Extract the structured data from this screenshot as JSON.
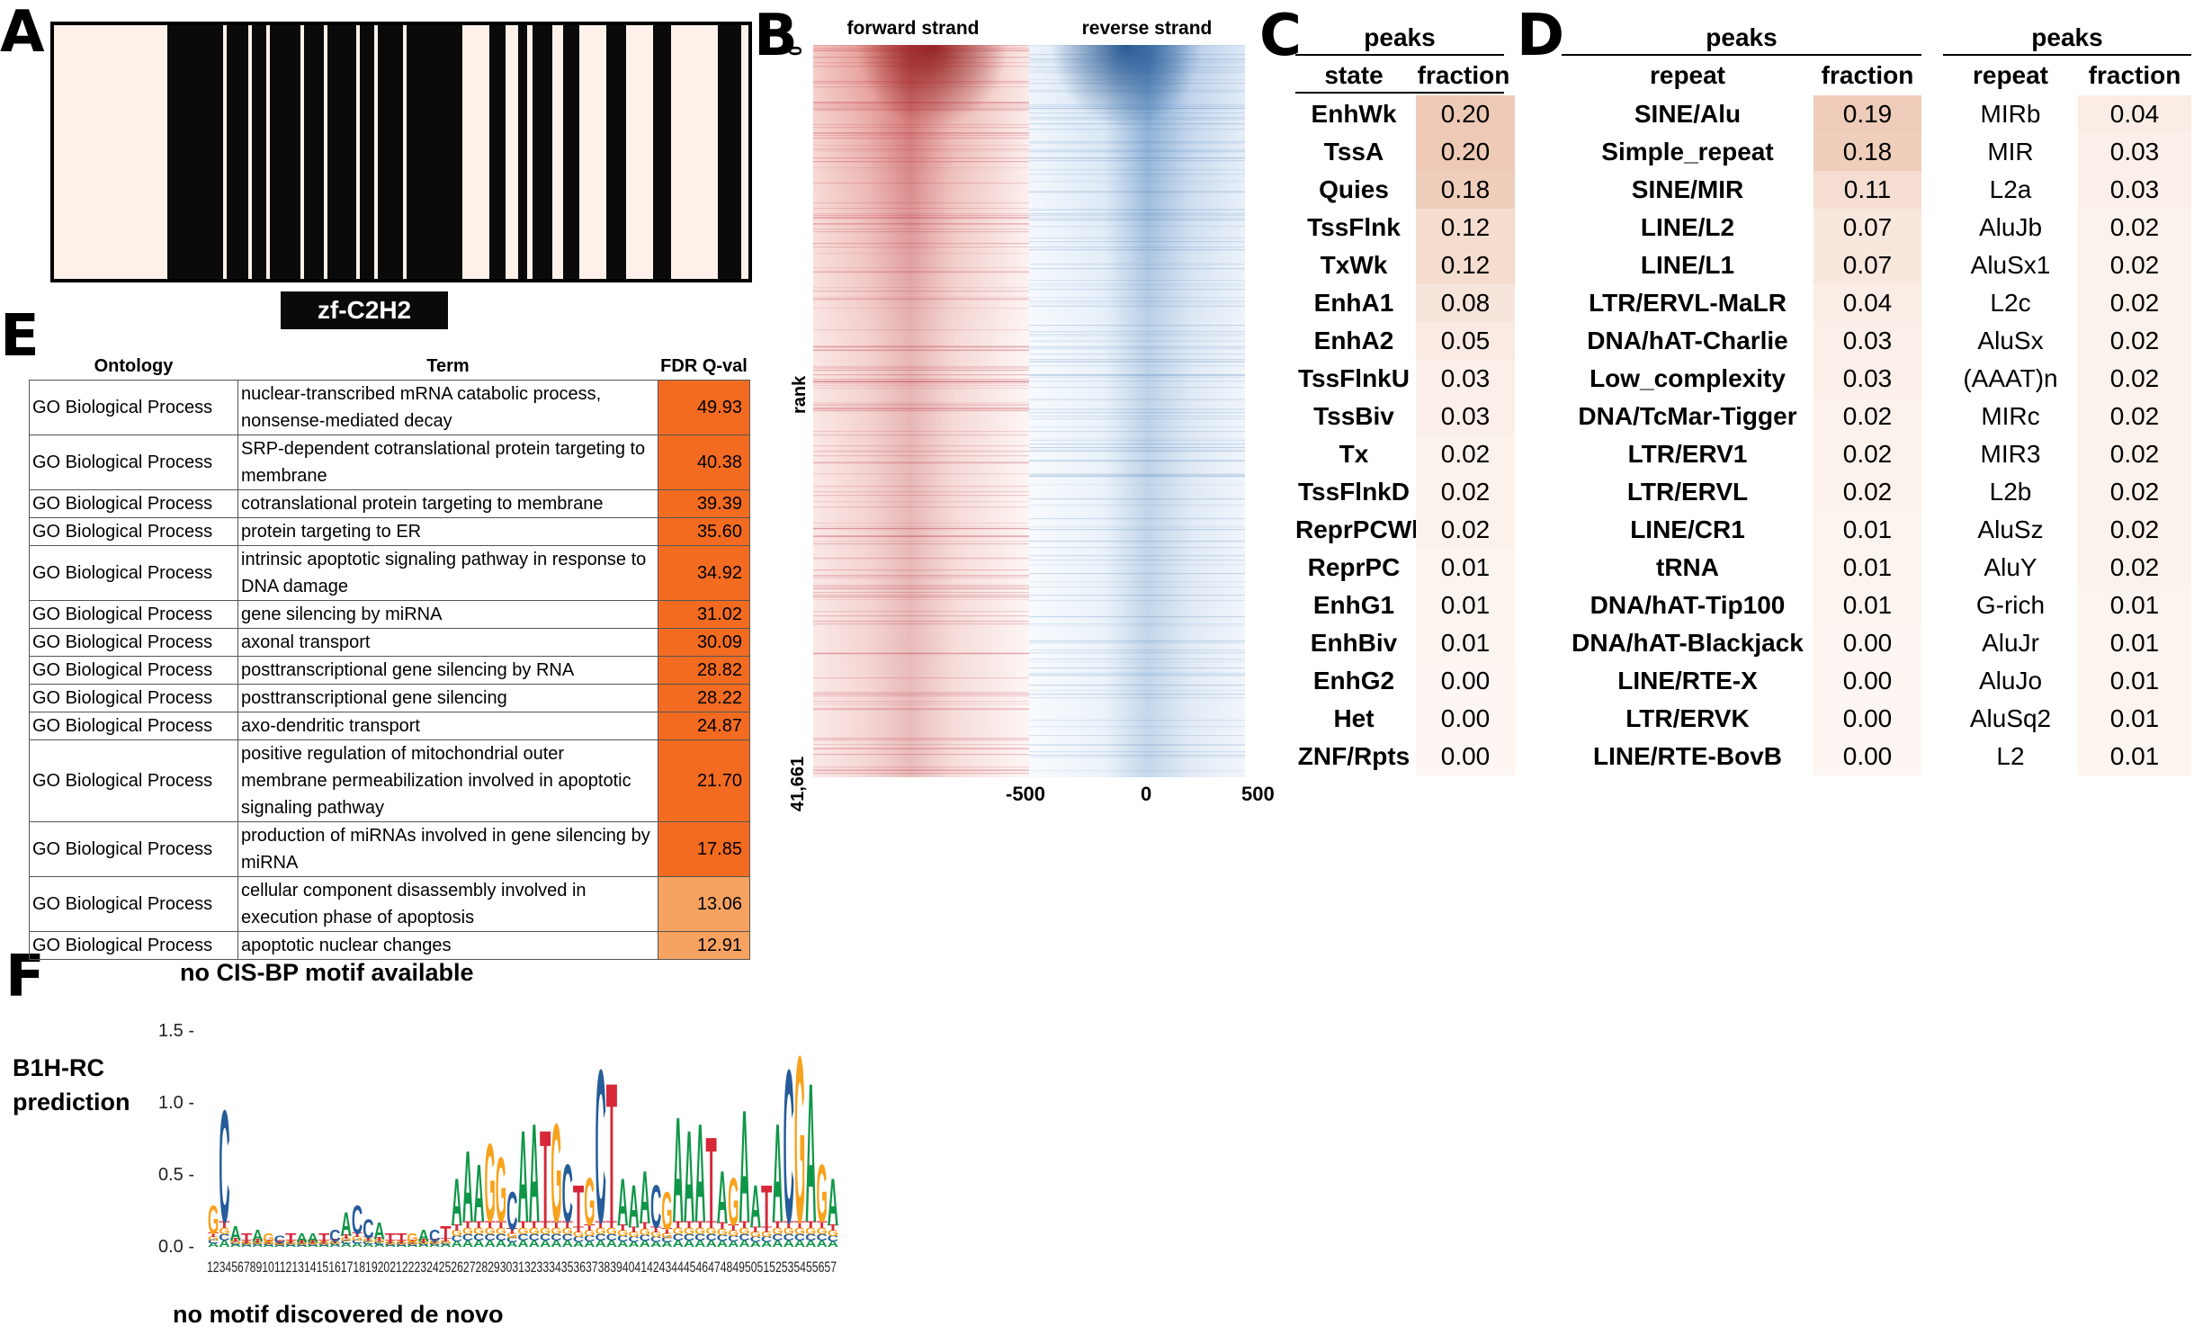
{
  "panels": {
    "a": "A",
    "b": "B",
    "c": "C",
    "d": "D",
    "e": "E",
    "f": "F"
  },
  "panel_a": {
    "domain_label": "zf-C2H2",
    "colors": {
      "light": "#fdf1ea",
      "dark": "#0a0a0a"
    }
  },
  "panel_b": {
    "forward_label": "forward strand",
    "reverse_label": "reverse strand",
    "y_label": "rank",
    "y_top": "0",
    "y_bottom": "41,661",
    "x_ticks": [
      "-500",
      "0",
      "500"
    ],
    "colors": {
      "forward": "#b2182b",
      "reverse": "#2166ac"
    }
  },
  "panel_c": {
    "title": "peaks",
    "headers": [
      "state",
      "fraction"
    ],
    "rows": [
      {
        "state": "EnhWk",
        "fraction": "0.20"
      },
      {
        "state": "TssA",
        "fraction": "0.20"
      },
      {
        "state": "Quies",
        "fraction": "0.18"
      },
      {
        "state": "TssFlnk",
        "fraction": "0.12"
      },
      {
        "state": "TxWk",
        "fraction": "0.12"
      },
      {
        "state": "EnhA1",
        "fraction": "0.08"
      },
      {
        "state": "EnhA2",
        "fraction": "0.05"
      },
      {
        "state": "TssFlnkU",
        "fraction": "0.03"
      },
      {
        "state": "TssBiv",
        "fraction": "0.03"
      },
      {
        "state": "Tx",
        "fraction": "0.02"
      },
      {
        "state": "TssFlnkD",
        "fraction": "0.02"
      },
      {
        "state": "ReprPCWk",
        "fraction": "0.02"
      },
      {
        "state": "ReprPC",
        "fraction": "0.01"
      },
      {
        "state": "EnhG1",
        "fraction": "0.01"
      },
      {
        "state": "EnhBiv",
        "fraction": "0.01"
      },
      {
        "state": "EnhG2",
        "fraction": "0.00"
      },
      {
        "state": "Het",
        "fraction": "0.00"
      },
      {
        "state": "ZNF/Rpts",
        "fraction": "0.00"
      }
    ]
  },
  "panel_d": {
    "family": {
      "title": "peaks",
      "headers": [
        "repeat",
        "fraction"
      ],
      "rows": [
        {
          "repeat": "SINE/Alu",
          "fraction": "0.19"
        },
        {
          "repeat": "Simple_repeat",
          "fraction": "0.18"
        },
        {
          "repeat": "SINE/MIR",
          "fraction": "0.11"
        },
        {
          "repeat": "LINE/L2",
          "fraction": "0.07"
        },
        {
          "repeat": "LINE/L1",
          "fraction": "0.07"
        },
        {
          "repeat": "LTR/ERVL-MaLR",
          "fraction": "0.04"
        },
        {
          "repeat": "DNA/hAT-Charlie",
          "fraction": "0.03"
        },
        {
          "repeat": "Low_complexity",
          "fraction": "0.03"
        },
        {
          "repeat": "DNA/TcMar-Tigger",
          "fraction": "0.02"
        },
        {
          "repeat": "LTR/ERV1",
          "fraction": "0.02"
        },
        {
          "repeat": "LTR/ERVL",
          "fraction": "0.02"
        },
        {
          "repeat": "LINE/CR1",
          "fraction": "0.01"
        },
        {
          "repeat": "tRNA",
          "fraction": "0.01"
        },
        {
          "repeat": "DNA/hAT-Tip100",
          "fraction": "0.01"
        },
        {
          "repeat": "DNA/hAT-Blackjack",
          "fraction": "0.00"
        },
        {
          "repeat": "LINE/RTE-X",
          "fraction": "0.00"
        },
        {
          "repeat": "LTR/ERVK",
          "fraction": "0.00"
        },
        {
          "repeat": "LINE/RTE-BovB",
          "fraction": "0.00"
        }
      ]
    },
    "subfamily": {
      "title": "peaks",
      "headers": [
        "repeat",
        "fraction"
      ],
      "rows": [
        {
          "repeat": "MIRb",
          "fraction": "0.04"
        },
        {
          "repeat": "MIR",
          "fraction": "0.03"
        },
        {
          "repeat": "L2a",
          "fraction": "0.03"
        },
        {
          "repeat": "AluJb",
          "fraction": "0.02"
        },
        {
          "repeat": "AluSx1",
          "fraction": "0.02"
        },
        {
          "repeat": "L2c",
          "fraction": "0.02"
        },
        {
          "repeat": "AluSx",
          "fraction": "0.02"
        },
        {
          "repeat": "(AAAT)n",
          "fraction": "0.02"
        },
        {
          "repeat": "MIRc",
          "fraction": "0.02"
        },
        {
          "repeat": "MIR3",
          "fraction": "0.02"
        },
        {
          "repeat": "L2b",
          "fraction": "0.02"
        },
        {
          "repeat": "AluSz",
          "fraction": "0.02"
        },
        {
          "repeat": "AluY",
          "fraction": "0.02"
        },
        {
          "repeat": "G-rich",
          "fraction": "0.01"
        },
        {
          "repeat": "AluJr",
          "fraction": "0.01"
        },
        {
          "repeat": "AluJo",
          "fraction": "0.01"
        },
        {
          "repeat": "AluSq2",
          "fraction": "0.01"
        },
        {
          "repeat": "L2",
          "fraction": "0.01"
        }
      ]
    }
  },
  "panel_e": {
    "headers": [
      "Ontology",
      "Term",
      "FDR Q-val"
    ],
    "rows": [
      {
        "ontology": "GO Biological Process",
        "term": "nuclear-transcribed mRNA catabolic process, nonsense-mediated decay",
        "fdr": "49.93"
      },
      {
        "ontology": "GO Biological Process",
        "term": "SRP-dependent cotranslational protein targeting to membrane",
        "fdr": "40.38"
      },
      {
        "ontology": "GO Biological Process",
        "term": "cotranslational protein targeting to membrane",
        "fdr": "39.39"
      },
      {
        "ontology": "GO Biological Process",
        "term": "protein targeting to ER",
        "fdr": "35.60"
      },
      {
        "ontology": "GO Biological Process",
        "term": "intrinsic apoptotic signaling pathway in response to DNA damage",
        "fdr": "34.92"
      },
      {
        "ontology": "GO Biological Process",
        "term": "gene silencing by miRNA",
        "fdr": "31.02"
      },
      {
        "ontology": "GO Biological Process",
        "term": "axonal transport",
        "fdr": "30.09"
      },
      {
        "ontology": "GO Biological Process",
        "term": "posttranscriptional gene silencing by RNA",
        "fdr": "28.82"
      },
      {
        "ontology": "GO Biological Process",
        "term": "posttranscriptional gene silencing",
        "fdr": "28.22"
      },
      {
        "ontology": "GO Biological Process",
        "term": "axo-dendritic transport",
        "fdr": "24.87"
      },
      {
        "ontology": "GO Biological Process",
        "term": "positive regulation of mitochondrial outer membrane permeabilization involved in apoptotic signaling pathway",
        "fdr": "21.70"
      },
      {
        "ontology": "GO Biological Process",
        "term": "production of miRNAs involved in gene silencing by miRNA",
        "fdr": "17.85"
      },
      {
        "ontology": "GO Biological Process",
        "term": "cellular component disassembly involved in execution phase of apoptosis",
        "fdr": "13.06"
      },
      {
        "ontology": "GO Biological Process",
        "term": "apoptotic nuclear changes",
        "fdr": "12.91"
      }
    ],
    "colors": {
      "strong": "#f26b21",
      "light": "#f6a261"
    }
  },
  "panel_f": {
    "cisbp_label": "no CIS-BP motif available",
    "b1h_label_line1": "B1H-RC",
    "b1h_label_line2": "prediction",
    "denovo_label": "no motif discovered de novo",
    "y_ticks": [
      "0.0 -",
      "0.5 -",
      "1.0 -",
      "1.5 -"
    ],
    "position_labels": "1234567891011213141516171819202122232425262728293031323334353637383940414243444546474849505152535455657",
    "colors": {
      "A": "#109648",
      "C": "#255c99",
      "G": "#f7a21b",
      "T": "#d62839"
    }
  }
}
